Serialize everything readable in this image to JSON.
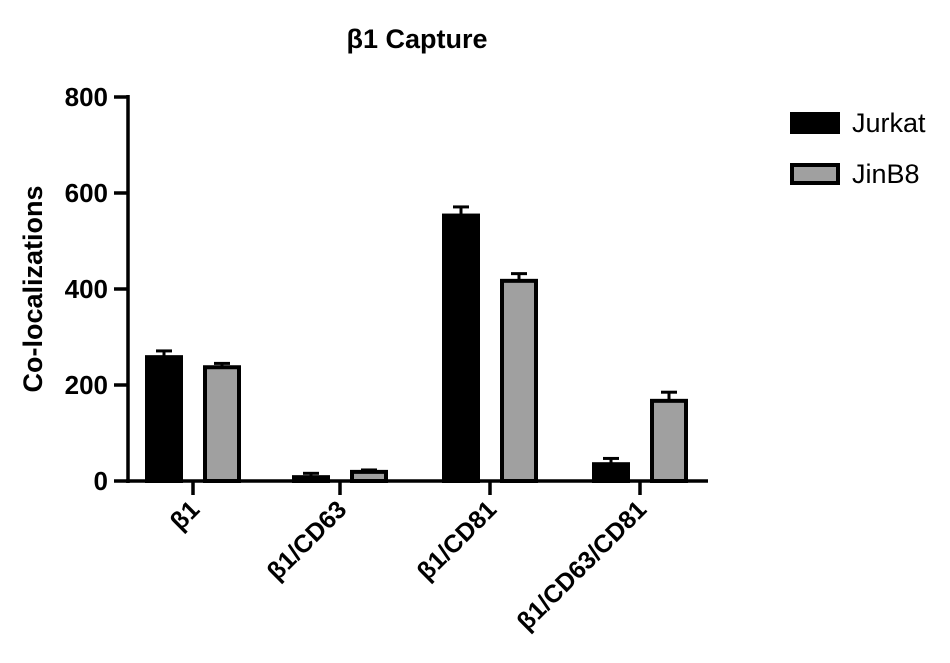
{
  "chart_data": {
    "type": "bar",
    "title": "β1 Capture",
    "xlabel": "",
    "ylabel": "Co-localizations",
    "categories": [
      "β1",
      "β1/CD63",
      "β1/CD81",
      "β1/CD63/CD81"
    ],
    "ylim": [
      0,
      800
    ],
    "yticks": [
      0,
      200,
      400,
      600,
      800
    ],
    "grid": false,
    "legend_position": "top-right",
    "series": [
      {
        "name": "Jurkat",
        "color": "#000000",
        "values": [
          258,
          8,
          553,
          35
        ],
        "errors": [
          13,
          8,
          18,
          12
        ]
      },
      {
        "name": "JinB8",
        "color": "#a0a0a0",
        "values": [
          237,
          19,
          417,
          167
        ],
        "errors": [
          8,
          4,
          15,
          18
        ]
      }
    ]
  }
}
